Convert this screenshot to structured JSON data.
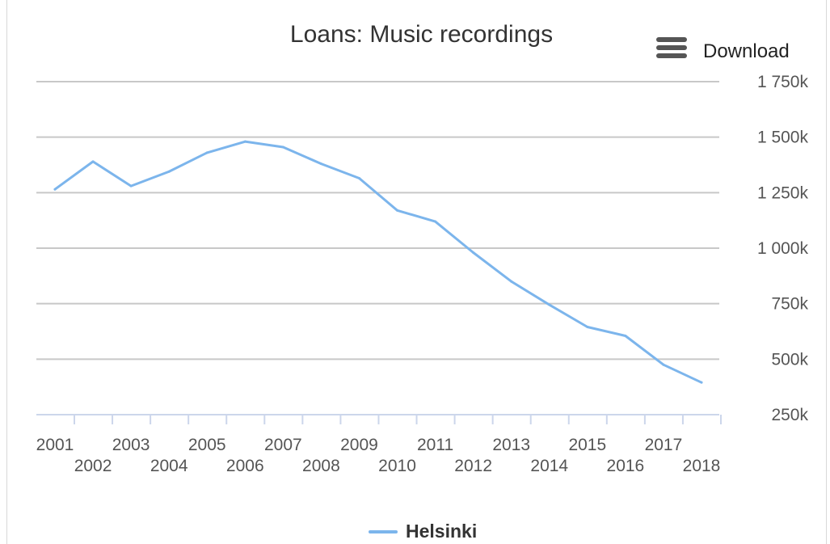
{
  "chart_data": {
    "type": "line",
    "title": "Loans: Music recordings",
    "xlabel": "",
    "ylabel": "",
    "x": [
      "2001",
      "2002",
      "2003",
      "2004",
      "2005",
      "2006",
      "2007",
      "2008",
      "2009",
      "2010",
      "2011",
      "2012",
      "2013",
      "2014",
      "2015",
      "2016",
      "2017",
      "2018"
    ],
    "series": [
      {
        "name": "Helsinki",
        "color": "#7cb5ec",
        "values": [
          1265000,
          1390000,
          1280000,
          1345000,
          1430000,
          1480000,
          1455000,
          1380000,
          1315000,
          1170000,
          1120000,
          980000,
          850000,
          745000,
          645000,
          605000,
          475000,
          395000
        ]
      }
    ],
    "ylim": [
      250000,
      1750000
    ],
    "yticks": [
      250000,
      500000,
      750000,
      1000000,
      1250000,
      1500000,
      1750000
    ],
    "ytick_labels": [
      "250k",
      "500k",
      "750k",
      "1 000k",
      "1 250k",
      "1 500k",
      "1 750k"
    ],
    "y_axis_side": "right",
    "grid": true,
    "legend_position": "bottom-center"
  },
  "ui": {
    "download_label": "Download",
    "menu_icon": "hamburger-menu-icon"
  },
  "colors": {
    "series": "#7cb5ec",
    "gridline": "#c8c8c8",
    "axis_line": "#ccd6eb"
  }
}
